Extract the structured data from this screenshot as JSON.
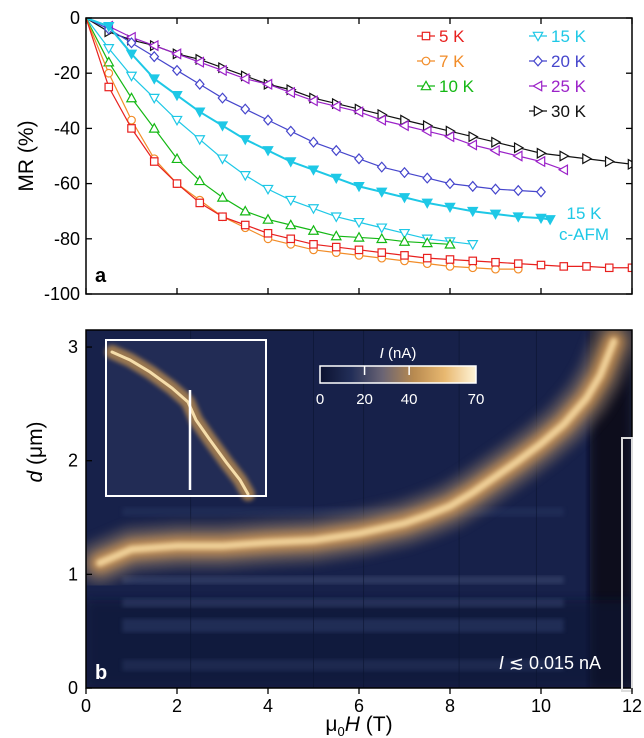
{
  "chart_data": [
    {
      "type": "line",
      "panel_label": "a",
      "xlabel": "",
      "ylabel": "MR (%)",
      "xlim": [
        0,
        12
      ],
      "ylim": [
        -100,
        0
      ],
      "yticks": [
        0,
        -20,
        -40,
        -60,
        -80,
        -100
      ],
      "ytick_labels": [
        "0",
        "-20",
        "-40",
        "-60",
        "-80",
        "-100"
      ],
      "legend_placement": "top-right",
      "series": [
        {
          "name": "5 K",
          "color": "#e8201e",
          "marker": "square",
          "x": [
            0.5,
            1.0,
            1.5,
            2.0,
            2.5,
            3.0,
            3.5,
            4.0,
            4.5,
            5.0,
            5.5,
            6.0,
            6.5,
            7.0,
            7.5,
            8.0,
            8.5,
            9.0,
            9.5,
            10.0,
            10.5,
            11.0,
            11.5,
            12.0
          ],
          "y": [
            -25,
            -40,
            -52,
            -60,
            -67,
            -72,
            -75,
            -78,
            -80,
            -82,
            -83,
            -84,
            -85,
            -86,
            -87,
            -87.5,
            -88,
            -88.5,
            -89,
            -89.5,
            -90,
            -90,
            -90.5,
            -90.5
          ]
        },
        {
          "name": "7 K",
          "color": "#f28c28",
          "marker": "circle",
          "x": [
            0.5,
            1.0,
            1.5,
            2.0,
            2.5,
            3.0,
            3.5,
            4.0,
            4.5,
            5.0,
            5.5,
            6.0,
            6.5,
            7.0,
            7.5,
            8.0,
            8.5,
            9.0,
            9.5
          ],
          "y": [
            -20,
            -37,
            -51,
            -60,
            -66,
            -72,
            -76,
            -80,
            -82,
            -84,
            -85,
            -86,
            -87,
            -88,
            -89,
            -90,
            -90.5,
            -91,
            -91
          ]
        },
        {
          "name": "10 K",
          "color": "#14b814",
          "marker": "triangle-up",
          "x": [
            0.5,
            1.0,
            1.5,
            2.0,
            2.5,
            3.0,
            3.5,
            4.0,
            4.5,
            5.0,
            5.5,
            6.0,
            6.5,
            7.0,
            7.5,
            8.0
          ],
          "y": [
            -16,
            -29,
            -40,
            -51,
            -59,
            -65,
            -70,
            -73,
            -75,
            -77,
            -79,
            -79.5,
            -80,
            -81,
            -81.5,
            -82
          ]
        },
        {
          "name": "15 K",
          "color": "#1ec8e6",
          "marker": "triangle-down",
          "x": [
            0.5,
            1.0,
            1.5,
            2.0,
            2.5,
            3.0,
            3.5,
            4.0,
            4.5,
            5.0,
            5.5,
            6.0,
            6.5,
            7.0,
            7.5,
            8.0,
            8.5
          ],
          "y": [
            -11,
            -21,
            -29,
            -37,
            -44,
            -51,
            -57,
            -62,
            -66,
            -69,
            -72,
            -74,
            -76,
            -78,
            -80,
            -81,
            -82
          ]
        },
        {
          "name": "20 K",
          "color": "#4646cc",
          "marker": "diamond",
          "x": [
            0.5,
            1.0,
            1.5,
            2.0,
            2.5,
            3.0,
            3.5,
            4.0,
            4.5,
            5.0,
            5.5,
            6.0,
            6.5,
            7.0,
            7.5,
            8.0,
            8.5,
            9.0,
            9.5,
            10.0
          ],
          "y": [
            -4,
            -9,
            -14,
            -19,
            -24,
            -29,
            -33,
            -37,
            -41,
            -45,
            -48,
            -51,
            -54,
            -56,
            -58,
            -60,
            -61,
            -62,
            -62.5,
            -63
          ]
        },
        {
          "name": "25 K",
          "color": "#9b22c8",
          "marker": "triangle-left",
          "x": [
            0.5,
            1.0,
            1.5,
            2.0,
            2.5,
            3.0,
            3.5,
            4.0,
            4.5,
            5.0,
            5.5,
            6.0,
            6.5,
            7.0,
            7.5,
            8.0,
            8.5,
            9.0,
            9.5,
            10.0,
            10.5
          ],
          "y": [
            -3,
            -7,
            -10,
            -13,
            -16,
            -19,
            -22,
            -24,
            -27,
            -30,
            -32,
            -34,
            -37,
            -39,
            -41,
            -43,
            -46,
            -48,
            -50,
            -52,
            -55
          ]
        },
        {
          "name": "30 K",
          "color": "#111111",
          "marker": "triangle-right",
          "x": [
            0.5,
            1.0,
            1.5,
            2.0,
            2.5,
            3.0,
            3.5,
            4.0,
            4.5,
            5.0,
            5.5,
            6.0,
            6.5,
            7.0,
            7.5,
            8.0,
            8.5,
            9.0,
            9.5,
            10.0,
            10.5,
            11.0,
            11.5,
            12.0
          ],
          "y": [
            -5,
            -8,
            -10,
            -13,
            -15,
            -18,
            -21,
            -24,
            -26,
            -29,
            -31,
            -33,
            -35,
            -37,
            -39,
            -41,
            -43,
            -45,
            -47,
            -49,
            -50,
            -51,
            -52,
            -53
          ]
        },
        {
          "name": "15 K c-AFM",
          "color": "#1ec8e6",
          "marker": "triangle-down-filled",
          "x": [
            0.5,
            1.0,
            1.5,
            2.0,
            2.5,
            3.0,
            3.5,
            4.0,
            4.5,
            5.0,
            5.5,
            6.0,
            6.5,
            7.0,
            7.5,
            8.0,
            8.5,
            9.0,
            9.5,
            10.0,
            10.2
          ],
          "y": [
            -3,
            -13,
            -22,
            -28,
            -34,
            -39,
            -44,
            -48,
            -52,
            -55,
            -58,
            -61,
            -63,
            -65,
            -67,
            -68.5,
            -70,
            -71,
            -72,
            -72.5,
            -73
          ]
        }
      ],
      "legend_entries": [
        "5 K",
        "7 K",
        "10 K",
        "15 K",
        "20 K",
        "25 K",
        "30 K"
      ],
      "annotation_lines": [
        "15 K",
        "c-AFM"
      ]
    },
    {
      "type": "heatmap",
      "panel_label": "b",
      "xlabel_parts": [
        "μ",
        "0",
        "H",
        " (T)"
      ],
      "ylabel_parts": [
        "d",
        " (μm)"
      ],
      "xlim": [
        0,
        12
      ],
      "ylim": [
        0,
        3.15
      ],
      "xticks": [
        0,
        2,
        4,
        6,
        8,
        10,
        12
      ],
      "xtick_labels": [
        "0",
        "2",
        "4",
        "6",
        "8",
        "10",
        "12"
      ],
      "yticks": [
        0,
        1,
        2,
        3
      ],
      "ytick_labels": [
        "0",
        "1",
        "2",
        "3"
      ],
      "colorbar": {
        "title_parts": [
          "I",
          " (nA)"
        ],
        "range": [
          0,
          70
        ],
        "ticks": [
          0,
          20,
          40,
          70
        ],
        "tick_labels": [
          "0",
          "20",
          "40",
          "70"
        ],
        "colors": [
          "#0c1230",
          "#222e58",
          "#6a6474",
          "#b88a50",
          "#e8b870",
          "#fff4d8"
        ]
      },
      "note_parts": [
        "I",
        " ≲ 0.015 nA"
      ],
      "ridge": {
        "field_T": [
          0.3,
          1,
          2,
          3,
          4,
          5,
          6,
          7,
          7.5,
          8,
          8.5,
          9,
          9.5,
          10,
          10.5,
          11,
          11.3,
          11.6
        ],
        "d_um": [
          1.1,
          1.22,
          1.25,
          1.25,
          1.28,
          1.3,
          1.36,
          1.45,
          1.52,
          1.6,
          1.72,
          1.86,
          2.0,
          2.15,
          2.32,
          2.55,
          2.75,
          3.05
        ]
      }
    }
  ]
}
